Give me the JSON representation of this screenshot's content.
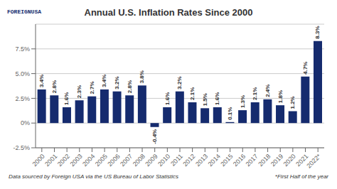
{
  "chart_data": {
    "type": "bar",
    "title": "Annual U.S. Inflation Rates Since 2000",
    "subtitle": "Data sourced by Foreign USA via the US Bureau of Labor Statistics",
    "annotations": [
      "FOREIGNUSA",
      "*First Half of the year"
    ],
    "categories": [
      "2000",
      "2001",
      "2002",
      "2003",
      "2004",
      "2005",
      "2006",
      "2007",
      "2008",
      "2009",
      "2010",
      "2011",
      "2012",
      "2013",
      "2014",
      "2015",
      "2016",
      "2017",
      "2018",
      "2019",
      "2020",
      "2021",
      "2022*"
    ],
    "values": [
      3.4,
      2.8,
      1.6,
      2.3,
      2.7,
      3.4,
      3.2,
      2.8,
      3.8,
      -0.4,
      1.6,
      3.2,
      2.1,
      1.5,
      1.6,
      0.1,
      1.3,
      2.1,
      2.4,
      1.8,
      1.2,
      4.7,
      8.3
    ],
    "value_labels": [
      "3.4%",
      "2.8%",
      "1.6%",
      "2.3%",
      "2.7%",
      "3.4%",
      "3.2%",
      "2.8%",
      "3.8%",
      "-0.4%",
      "1.6%",
      "3.2%",
      "2.1%",
      "1.5%",
      "1.6%",
      "0.1%",
      "1.3%",
      "2.1%",
      "2.4%",
      "1.8%",
      "1.2%",
      "4.7%",
      "8.3%"
    ],
    "data_labels": true,
    "color": "#152b6e",
    "ylim": [
      -2.5,
      10.0
    ],
    "yticks": [
      {
        "value": -2.5,
        "label": "-2.5%"
      },
      {
        "value": 0.0,
        "label": "0%"
      },
      {
        "value": 2.5,
        "label": "2.5%"
      },
      {
        "value": 5.0,
        "label": "5.0%"
      },
      {
        "value": 7.5,
        "label": "7.5%"
      }
    ],
    "grid": true
  }
}
